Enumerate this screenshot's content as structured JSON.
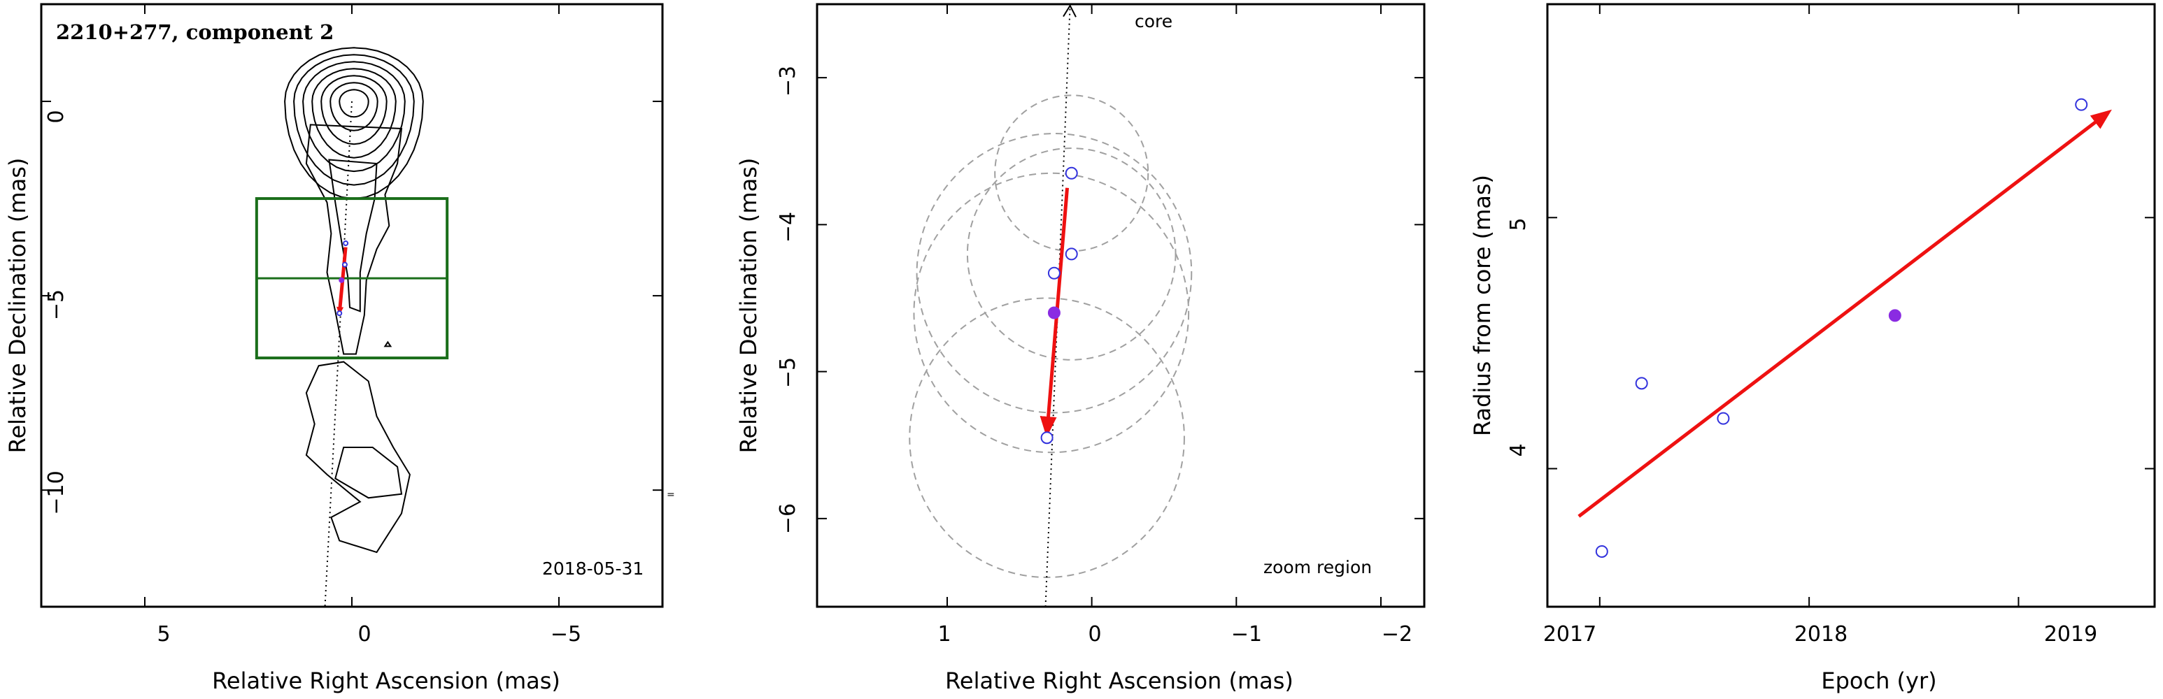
{
  "colors": {
    "axes": "#000000",
    "contour": "#000000",
    "box": "#1a6e1a",
    "arrow": "#ee1111",
    "open_marker": "#3333dd",
    "filled_marker": "#8a2be2",
    "circles": "#a0a0a0"
  },
  "chart_data": [
    {
      "type": "scatter",
      "subtype": "contour-map",
      "title": "2210+277, component 2",
      "xlabel": "Relative Right Ascension (mas)",
      "ylabel": "Relative Declination (mas)",
      "xlim": [
        7.5,
        -7.5
      ],
      "ylim": [
        -13,
        2.5
      ],
      "xticks": [
        5,
        0,
        -5
      ],
      "yticks": [
        0,
        -5,
        -10
      ],
      "xtick_labels": [
        "5",
        "0",
        "−5"
      ],
      "ytick_labels": [
        "0",
        "−5",
        "−10"
      ],
      "date_label": "2018-05-31",
      "zoom_box": {
        "x": [
          2.3,
          -2.3
        ],
        "y": [
          -6.6,
          -2.5
        ],
        "mid_y": -4.55
      },
      "jet_axis": [
        [
          0,
          0
        ],
        [
          0.65,
          -13
        ]
      ],
      "arrow": {
        "from": [
          0.15,
          -3.75
        ],
        "to": [
          0.3,
          -5.45
        ]
      },
      "points": [
        {
          "x": 0.15,
          "y": -3.65,
          "filled": false
        },
        {
          "x": 0.17,
          "y": -4.2,
          "filled": false
        },
        {
          "x": 0.3,
          "y": -5.45,
          "filled": false
        },
        {
          "x": 0.25,
          "y": -4.6,
          "filled": true
        }
      ],
      "grid": false
    },
    {
      "type": "scatter",
      "title": "",
      "xlabel": "Relative Right Ascension (mas)",
      "ylabel": "Relative Declination (mas)",
      "xlim": [
        1.9,
        -2.3
      ],
      "ylim": [
        -6.6,
        -2.5
      ],
      "xticks": [
        1,
        0,
        -1,
        -2
      ],
      "yticks": [
        -3,
        -4,
        -5,
        -6
      ],
      "xtick_labels": [
        "1",
        "0",
        "−1",
        "−2"
      ],
      "ytick_labels": [
        "−3",
        "−4",
        "−5",
        "−6"
      ],
      "core_label": "core",
      "region_label": "zoom region",
      "jet_axis": [
        [
          0.15,
          -2.5
        ],
        [
          0.32,
          -6.6
        ]
      ],
      "arrow": {
        "from": [
          0.17,
          -3.75
        ],
        "to": [
          0.31,
          -5.42
        ]
      },
      "points": [
        {
          "x": 0.14,
          "y": -3.65,
          "filled": false
        },
        {
          "x": 0.14,
          "y": -4.2,
          "filled": false
        },
        {
          "x": 0.26,
          "y": -4.33,
          "filled": false
        },
        {
          "x": 0.31,
          "y": -5.45,
          "filled": false
        },
        {
          "x": 0.26,
          "y": -4.6,
          "filled": true
        }
      ],
      "error_circles": [
        {
          "x": 0.14,
          "y": -3.65,
          "r": 0.53
        },
        {
          "x": 0.14,
          "y": -4.2,
          "r": 0.72
        },
        {
          "x": 0.26,
          "y": -4.33,
          "r": 0.95
        },
        {
          "x": 0.28,
          "y": -4.6,
          "r": 0.95
        },
        {
          "x": 0.31,
          "y": -5.45,
          "r": 0.95
        }
      ],
      "grid": false
    },
    {
      "type": "scatter",
      "title": "",
      "xlabel": "Epoch (yr)",
      "ylabel": "Radius from core (mas)",
      "xlim": [
        2016.75,
        2019.65
      ],
      "ylim": [
        3.45,
        5.85
      ],
      "xticks": [
        2017,
        2018,
        2019
      ],
      "yticks": [
        4,
        5
      ],
      "xtick_labels": [
        "2017",
        "2018",
        "2019"
      ],
      "ytick_labels": [
        "4",
        "5"
      ],
      "fit_arrow": {
        "from": [
          2016.9,
          3.81
        ],
        "to": [
          2019.43,
          5.42
        ]
      },
      "points": [
        {
          "x": 2017.01,
          "y": 3.67,
          "filled": false
        },
        {
          "x": 2017.2,
          "y": 4.34,
          "filled": false
        },
        {
          "x": 2017.59,
          "y": 4.2,
          "filled": false
        },
        {
          "x": 2019.3,
          "y": 5.45,
          "filled": false
        },
        {
          "x": 2018.41,
          "y": 4.61,
          "filled": true
        }
      ],
      "grid": false
    }
  ]
}
